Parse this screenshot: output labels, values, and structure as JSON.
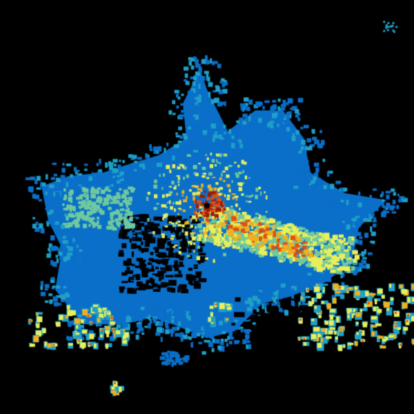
{
  "radar": {
    "background": "#000000",
    "palette": {
      "low": "#0a6fc8",
      "low_edge": "#1fa0c8",
      "mid_low": "#6fc8a0",
      "mid": "#e8ef5a",
      "mid_high": "#f0b020",
      "high": "#e05010",
      "very_high": "#a01800"
    }
  }
}
